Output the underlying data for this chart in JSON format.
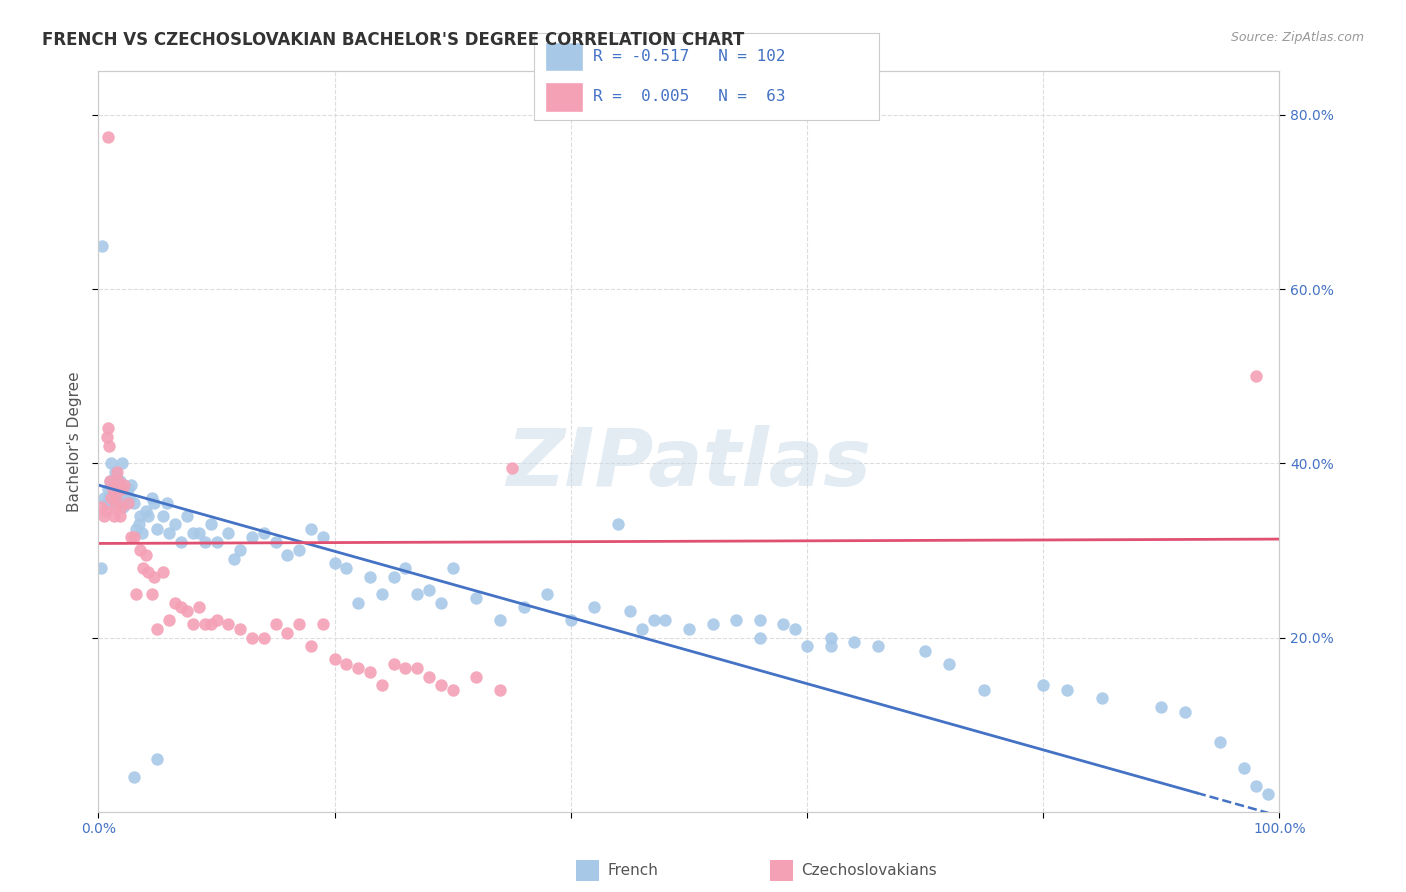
{
  "title": "FRENCH VS CZECHOSLOVAKIAN BACHELOR'S DEGREE CORRELATION CHART",
  "source": "Source: ZipAtlas.com",
  "ylabel": "Bachelor's Degree",
  "xlim": [
    0.0,
    1.0
  ],
  "ylim": [
    0.0,
    0.85
  ],
  "french_color": "#a8c8e8",
  "czech_color": "#f4a0b5",
  "french_line_color": "#4472c4",
  "czech_line_color": "#e05070",
  "legend_text_color": "#4472c4",
  "watermark": "ZIPatlas",
  "french_slope": -0.38,
  "french_intercept": 0.375,
  "czech_slope": 0.005,
  "czech_intercept": 0.308,
  "french_points_x": [
    0.002,
    0.005,
    0.007,
    0.008,
    0.009,
    0.01,
    0.011,
    0.012,
    0.013,
    0.014,
    0.015,
    0.016,
    0.017,
    0.018,
    0.019,
    0.02,
    0.021,
    0.022,
    0.023,
    0.025,
    0.026,
    0.028,
    0.03,
    0.032,
    0.034,
    0.035,
    0.037,
    0.04,
    0.042,
    0.045,
    0.047,
    0.05,
    0.055,
    0.058,
    0.06,
    0.065,
    0.07,
    0.075,
    0.08,
    0.085,
    0.09,
    0.095,
    0.1,
    0.11,
    0.115,
    0.12,
    0.13,
    0.14,
    0.15,
    0.16,
    0.17,
    0.18,
    0.19,
    0.2,
    0.21,
    0.22,
    0.23,
    0.24,
    0.25,
    0.26,
    0.27,
    0.28,
    0.29,
    0.3,
    0.32,
    0.34,
    0.36,
    0.38,
    0.4,
    0.42,
    0.45,
    0.48,
    0.5,
    0.52,
    0.54,
    0.56,
    0.58,
    0.6,
    0.62,
    0.64,
    0.66,
    0.7,
    0.72,
    0.75,
    0.8,
    0.82,
    0.85,
    0.9,
    0.92,
    0.95,
    0.97,
    0.98,
    0.99,
    0.44,
    0.47,
    0.003,
    0.46,
    0.62,
    0.56,
    0.59,
    0.03,
    0.05
  ],
  "french_points_y": [
    0.28,
    0.36,
    0.355,
    0.37,
    0.36,
    0.38,
    0.4,
    0.37,
    0.355,
    0.39,
    0.385,
    0.365,
    0.37,
    0.38,
    0.37,
    0.4,
    0.35,
    0.355,
    0.365,
    0.37,
    0.36,
    0.375,
    0.355,
    0.325,
    0.33,
    0.34,
    0.32,
    0.345,
    0.34,
    0.36,
    0.355,
    0.325,
    0.34,
    0.355,
    0.32,
    0.33,
    0.31,
    0.34,
    0.32,
    0.32,
    0.31,
    0.33,
    0.31,
    0.32,
    0.29,
    0.3,
    0.315,
    0.32,
    0.31,
    0.295,
    0.3,
    0.325,
    0.315,
    0.285,
    0.28,
    0.24,
    0.27,
    0.25,
    0.27,
    0.28,
    0.25,
    0.255,
    0.24,
    0.28,
    0.245,
    0.22,
    0.235,
    0.25,
    0.22,
    0.235,
    0.23,
    0.22,
    0.21,
    0.215,
    0.22,
    0.2,
    0.215,
    0.19,
    0.2,
    0.195,
    0.19,
    0.185,
    0.17,
    0.14,
    0.145,
    0.14,
    0.13,
    0.12,
    0.115,
    0.08,
    0.05,
    0.03,
    0.02,
    0.33,
    0.22,
    0.65,
    0.21,
    0.19,
    0.22,
    0.21,
    0.04,
    0.06
  ],
  "czech_points_x": [
    0.002,
    0.005,
    0.006,
    0.007,
    0.008,
    0.009,
    0.01,
    0.011,
    0.012,
    0.013,
    0.014,
    0.015,
    0.016,
    0.017,
    0.018,
    0.019,
    0.02,
    0.022,
    0.025,
    0.028,
    0.03,
    0.032,
    0.035,
    0.038,
    0.04,
    0.042,
    0.045,
    0.047,
    0.05,
    0.055,
    0.06,
    0.065,
    0.07,
    0.075,
    0.08,
    0.085,
    0.09,
    0.095,
    0.1,
    0.11,
    0.12,
    0.13,
    0.14,
    0.15,
    0.16,
    0.17,
    0.18,
    0.19,
    0.2,
    0.21,
    0.22,
    0.23,
    0.24,
    0.25,
    0.26,
    0.27,
    0.28,
    0.29,
    0.3,
    0.32,
    0.34,
    0.35,
    0.98,
    0.008
  ],
  "czech_points_y": [
    0.35,
    0.34,
    0.345,
    0.43,
    0.44,
    0.42,
    0.38,
    0.36,
    0.37,
    0.34,
    0.35,
    0.36,
    0.39,
    0.38,
    0.34,
    0.35,
    0.37,
    0.375,
    0.355,
    0.315,
    0.315,
    0.25,
    0.3,
    0.28,
    0.295,
    0.275,
    0.25,
    0.27,
    0.21,
    0.275,
    0.22,
    0.24,
    0.235,
    0.23,
    0.215,
    0.235,
    0.215,
    0.215,
    0.22,
    0.215,
    0.21,
    0.2,
    0.2,
    0.215,
    0.205,
    0.215,
    0.19,
    0.215,
    0.175,
    0.17,
    0.165,
    0.16,
    0.145,
    0.17,
    0.165,
    0.165,
    0.155,
    0.145,
    0.14,
    0.155,
    0.14,
    0.395,
    0.5,
    0.775
  ],
  "background_color": "#ffffff",
  "grid_color": "#dddddd",
  "title_fontsize": 12,
  "axis_label_fontsize": 11,
  "tick_fontsize": 10,
  "legend_fontsize": 12
}
